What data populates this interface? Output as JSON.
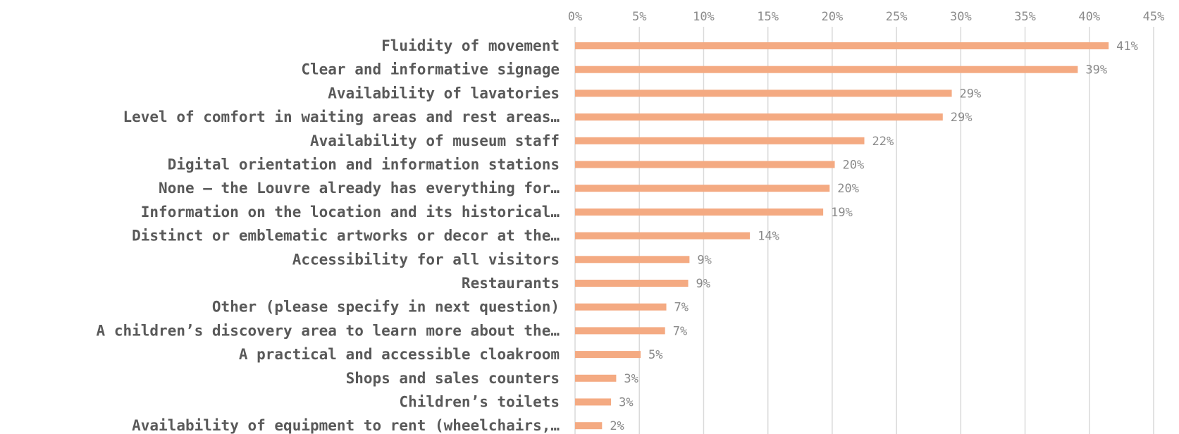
{
  "chart_data": {
    "type": "bar",
    "orientation": "horizontal",
    "categories": [
      "Fluidity of movement",
      "Clear and informative signage",
      "Availability of lavatories",
      "Level of comfort in waiting areas and rest areas…",
      "Availability of museum staff",
      "Digital orientation and information stations",
      "None – the Louvre already has everything for…",
      "Information on the location and its historical…",
      "Distinct or emblematic artworks or decor at the…",
      "Accessibility for all visitors",
      "Restaurants",
      "Other (please specify in next question)",
      "A children’s discovery area to learn more about the…",
      "A practical and accessible cloakroom",
      "Shops and sales counters",
      "Children’s toilets",
      "Availability of equipment to rent (wheelchairs,…"
    ],
    "values": [
      41.5,
      39.1,
      29.3,
      28.6,
      22.5,
      20.2,
      19.8,
      19.3,
      13.6,
      8.9,
      8.8,
      7.1,
      7.0,
      5.1,
      3.2,
      2.8,
      2.1
    ],
    "data_labels": [
      "41%",
      "39%",
      "29%",
      "29%",
      "22%",
      "20%",
      "20%",
      "19%",
      "14%",
      "9%",
      "9%",
      "7%",
      "7%",
      "5%",
      "3%",
      "3%",
      "2%"
    ],
    "xlim": [
      0,
      45
    ],
    "x_ticks": [
      0,
      5,
      10,
      15,
      20,
      25,
      30,
      35,
      40,
      45
    ],
    "x_tick_labels": [
      "0%",
      "5%",
      "10%",
      "15%",
      "20%",
      "25%",
      "30%",
      "35%",
      "40%",
      "45%"
    ],
    "x_axis_position": "top",
    "grid": true,
    "bar_color": "#f4aa82",
    "title": "",
    "xlabel": "",
    "ylabel": ""
  }
}
